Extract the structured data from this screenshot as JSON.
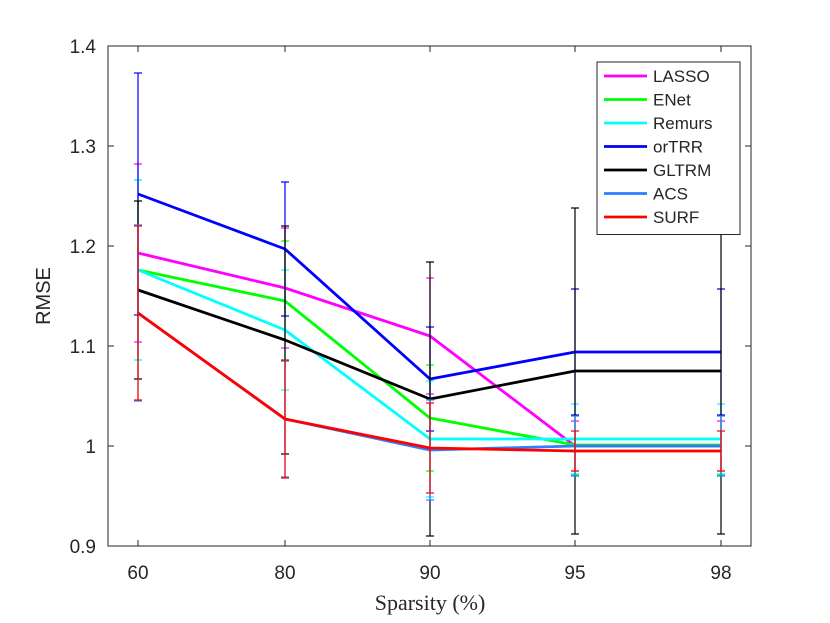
{
  "chart_data": {
    "type": "line",
    "title": "",
    "xlabel": "Sparsity (%)",
    "ylabel": "RMSE",
    "categories": [
      "60",
      "80",
      "90",
      "95",
      "98"
    ],
    "ylim": [
      0.9,
      1.4
    ],
    "yticks": [
      "0.9",
      "1",
      "1.1",
      "1.2",
      "1.3",
      "1.4"
    ],
    "ytick_values": [
      0.9,
      1.0,
      1.1,
      1.2,
      1.3,
      1.4
    ],
    "legend_position": "top-right",
    "series": [
      {
        "name": "LASSO",
        "color": "#ff00ff",
        "values": [
          1.193,
          1.158,
          1.11,
          1.0,
          1.0
        ],
        "err": [
          0.089,
          0.06,
          0.058,
          0.025,
          0.025
        ]
      },
      {
        "name": "ENet",
        "color": "#00ff00",
        "values": [
          1.176,
          1.145,
          1.028,
          1.001,
          1.001
        ],
        "err": [
          0.09,
          0.06,
          0.053,
          0.03,
          0.03
        ]
      },
      {
        "name": "Remurs",
        "color": "#00ffff",
        "values": [
          1.176,
          1.116,
          1.007,
          1.007,
          1.007
        ],
        "err": [
          0.09,
          0.06,
          0.058,
          0.035,
          0.035
        ]
      },
      {
        "name": "orTRR",
        "color": "#0000ff",
        "values": [
          1.252,
          1.197,
          1.067,
          1.094,
          1.094
        ],
        "err": [
          0.121,
          0.067,
          0.052,
          0.063,
          0.063
        ]
      },
      {
        "name": "GLTRM",
        "color": "#000000",
        "values": [
          1.156,
          1.106,
          1.047,
          1.075,
          1.075
        ],
        "err": [
          0.089,
          0.114,
          0.137,
          0.163,
          0.163
        ]
      },
      {
        "name": "ACS",
        "color": "#2a7fff",
        "values": [
          1.133,
          1.027,
          0.996,
          1.0,
          1.0
        ],
        "err": [
          0.088,
          0.058,
          0.05,
          0.03,
          0.03
        ]
      },
      {
        "name": "SURF",
        "color": "#ff0000",
        "values": [
          1.133,
          1.027,
          0.998,
          0.995,
          0.995
        ],
        "err": [
          0.087,
          0.059,
          0.045,
          0.02,
          0.02
        ]
      }
    ]
  }
}
